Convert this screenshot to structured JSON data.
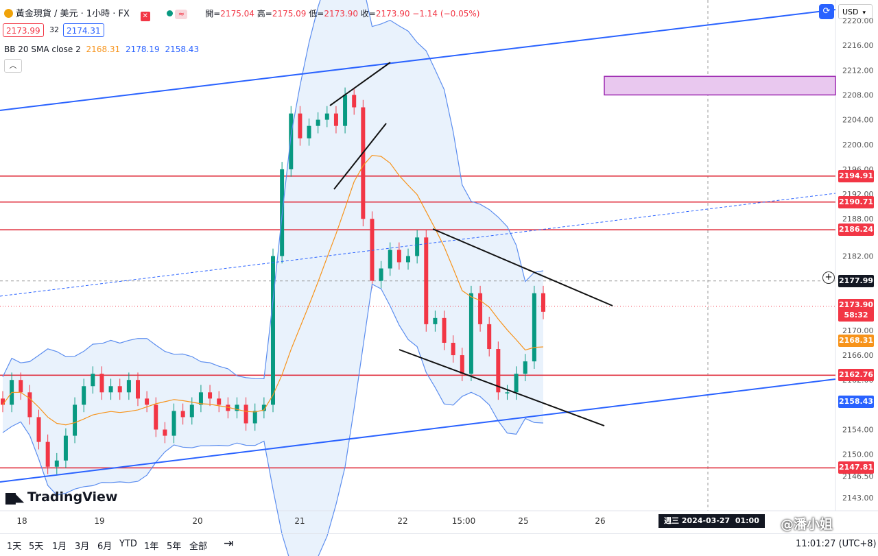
{
  "header": {
    "symbol": "黃金現貨 / 美元 · 1小時 · FX",
    "open_label": "開=",
    "open": "2175.04",
    "high_label": "高=",
    "high": "2175.09",
    "low_label": "低=",
    "low": "2173.90",
    "close_label": "收=",
    "close": "2173.90",
    "change": "−1.14 (−0.05%)",
    "bid": "2173.99",
    "spread": "32",
    "ask": "2174.31",
    "indicator_name": "BB 20 SMA close 2",
    "bb_basis": "2168.31",
    "bb_upper": "2178.19",
    "bb_lower": "2158.43",
    "collapse_icon": "chevron-up-icon"
  },
  "toolbar": {
    "currency": "USD",
    "fullscreen_icon": "expand-icon"
  },
  "brand": {
    "name": "TradingView"
  },
  "footer": {
    "timeframes": [
      "1天",
      "5天",
      "1月",
      "3月",
      "6月",
      "YTD",
      "1年",
      "5年",
      "全部"
    ],
    "clock": "11:01:27 (UTC+8)",
    "crosshair_time": "週三 2024-03-27  01:00",
    "watermark": "@潘小姐"
  },
  "colors": {
    "up": "#089981",
    "down": "#f23645",
    "bb_line": "#5b8def",
    "bb_basis": "#f7931a",
    "band_fill": "#e4effb",
    "hline": "#e0303f",
    "trend": "#2962ff",
    "zone": "#9c27b0"
  },
  "price_tags": [
    {
      "label": "2194.91",
      "color": "#f23645"
    },
    {
      "label": "2190.71",
      "color": "#f23645"
    },
    {
      "label": "2186.24",
      "color": "#f23645"
    },
    {
      "label": "2177.99",
      "color": "#131722"
    },
    {
      "label": "2173.90",
      "color": "#f23645"
    },
    {
      "label": "58:32",
      "color": "#f23645"
    },
    {
      "label": "2168.31",
      "color": "#f7931a"
    },
    {
      "label": "2162.76",
      "color": "#f23645"
    },
    {
      "label": "2158.43",
      "color": "#2962ff"
    },
    {
      "label": "2147.81",
      "color": "#f23645"
    }
  ],
  "chart_data": {
    "type": "candlestick",
    "symbol": "XAU/USD",
    "timeframe": "1H",
    "y_ticks": [
      2220,
      2216,
      2212,
      2208,
      2204,
      2200,
      2196,
      2192,
      2188,
      2182,
      2178,
      2174,
      2170,
      2166,
      2162,
      2158,
      2154,
      2150,
      2146.5,
      2143
    ],
    "y_tick_labels": [
      "2220.00",
      "2216.00",
      "2212.00",
      "2208.00",
      "2204.00",
      "2200.00",
      "2196.00",
      "2192.00",
      "2188.00",
      "2182.00",
      "2178.00",
      "2174.00",
      "2170.00",
      "2166.00",
      "2162.00",
      "2158.00",
      "2154.00",
      "2150.00",
      "2146.50",
      "2143.00"
    ],
    "x_ticks": [
      "18",
      "19",
      "20",
      "21",
      "22",
      "15:00",
      "25",
      "26"
    ],
    "ylim": [
      2140.5,
      2222
    ],
    "horizontal_levels": [
      2194.91,
      2190.71,
      2186.24,
      2162.76,
      2147.81
    ],
    "last_price": 2173.9,
    "crosshair_price": 2177.99,
    "resistance_zone": [
      2208,
      2211
    ],
    "bollinger": {
      "period": 20,
      "stddev": 2,
      "basis": 2168.31,
      "upper": 2178.19,
      "lower": 2158.43
    },
    "candles_close_approx": [
      2158,
      2162,
      2160,
      2156,
      2152,
      2148,
      2149,
      2153,
      2158,
      2161,
      2163,
      2160,
      2161,
      2160,
      2162,
      2159,
      2158,
      2154,
      2153,
      2157,
      2156,
      2158,
      2160,
      2159,
      2158,
      2157,
      2158,
      2155,
      2157,
      2158,
      2182,
      2196,
      2205,
      2201,
      2203,
      2204,
      2205,
      2203,
      2208,
      2206,
      2188,
      2178,
      2180,
      2183,
      2181,
      2182,
      2185,
      2171,
      2172,
      2168,
      2166,
      2163,
      2176,
      2171,
      2167,
      2160,
      2160,
      2163,
      2165,
      2176,
      2173
    ]
  }
}
